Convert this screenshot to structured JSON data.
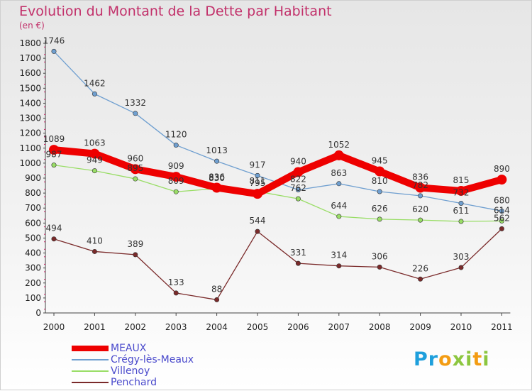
{
  "title": "Evolution du Montant de la Dette par Habitant",
  "subtitle": "(en €)",
  "logo_letters": [
    {
      "ch": "P",
      "color": "#1e9fdc"
    },
    {
      "ch": "r",
      "color": "#1e9fdc"
    },
    {
      "ch": "o",
      "color": "#f39c12"
    },
    {
      "ch": "x",
      "color": "#8cc63f"
    },
    {
      "ch": "i",
      "color": "#8cc63f"
    },
    {
      "ch": "t",
      "color": "#f39c12"
    },
    {
      "ch": "i",
      "color": "#8cc63f"
    }
  ],
  "chart_data": {
    "type": "line",
    "title": "Evolution du Montant de la Dette par Habitant",
    "subtitle": "(en €)",
    "x": [
      "2000",
      "2001",
      "2002",
      "2003",
      "2004",
      "2005",
      "2006",
      "2007",
      "2008",
      "2009",
      "2010",
      "2011"
    ],
    "ylim": [
      0,
      1800
    ],
    "yticks": [
      0,
      100,
      200,
      300,
      400,
      500,
      600,
      700,
      800,
      900,
      1000,
      1100,
      1200,
      1300,
      1400,
      1500,
      1600,
      1700,
      1800
    ],
    "grid": false,
    "legend_placement": "bottom-left",
    "series": [
      {
        "name": "MEAUX",
        "color": "#ee0000",
        "width": "thick",
        "values": [
          1089,
          1063,
          960,
          909,
          836,
          795,
          940,
          1052,
          945,
          836,
          815,
          890
        ]
      },
      {
        "name": "Crégy-lès-Meaux",
        "color": "#6f9fd0",
        "width": "thin",
        "values": [
          1746,
          1462,
          1332,
          1120,
          1013,
          917,
          822,
          863,
          810,
          782,
          732,
          680
        ]
      },
      {
        "name": "Villenoy",
        "color": "#99dd66",
        "width": "thin",
        "values": [
          987,
          949,
          895,
          809,
          830,
          811,
          762,
          644,
          626,
          620,
          611,
          614
        ]
      },
      {
        "name": "Penchard",
        "color": "#7a2a2a",
        "width": "thin",
        "values": [
          494,
          410,
          389,
          133,
          88,
          544,
          331,
          314,
          306,
          226,
          303,
          562
        ]
      }
    ]
  }
}
